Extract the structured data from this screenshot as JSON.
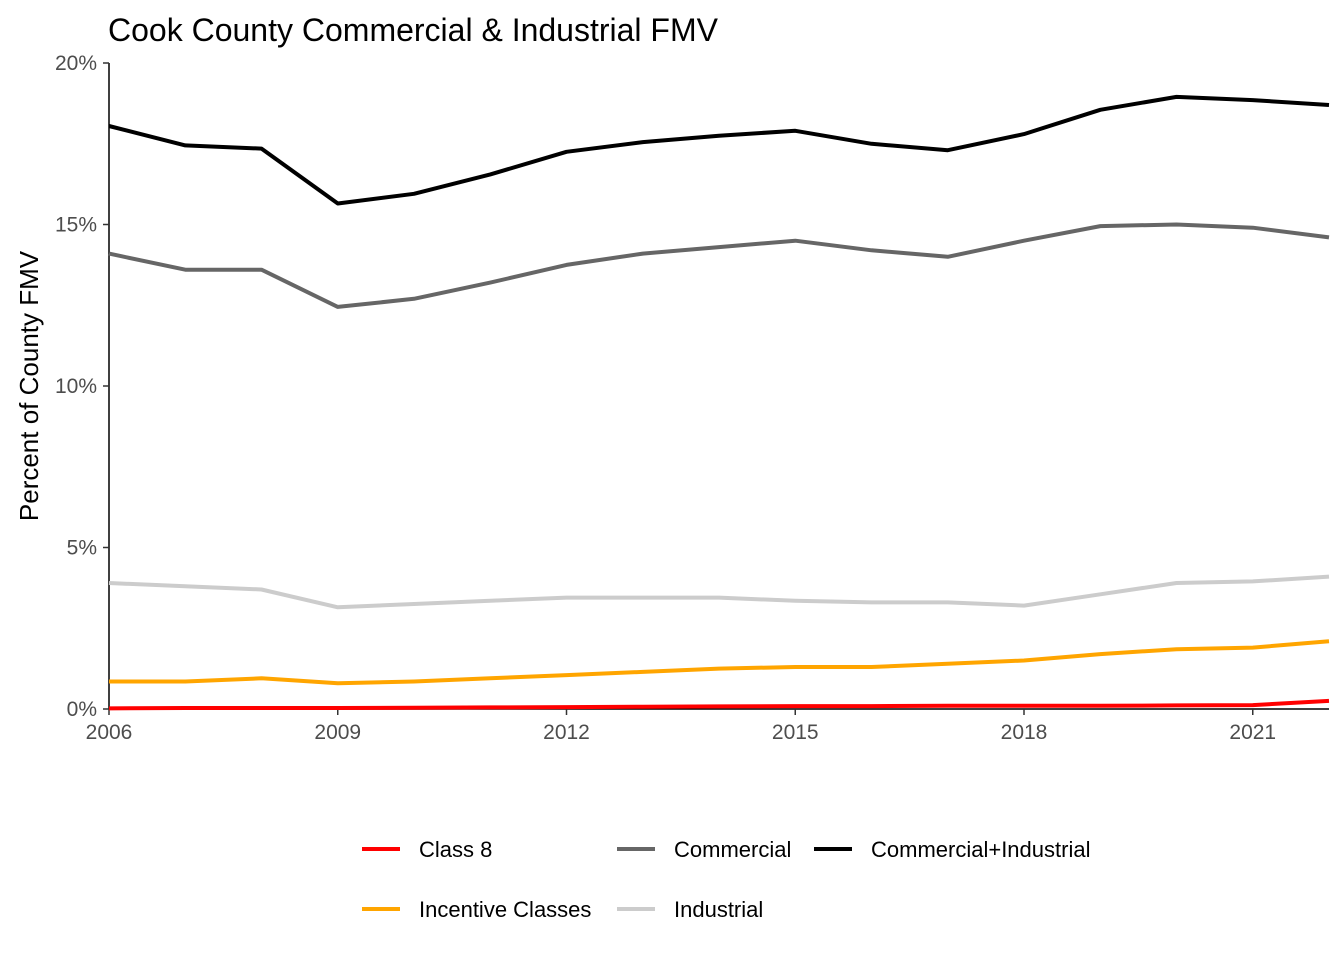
{
  "chart_data": {
    "type": "line",
    "title": "Cook County Commercial & Industrial FMV",
    "xlabel": "",
    "ylabel": "Percent of County FMV",
    "x": [
      2006,
      2007,
      2008,
      2009,
      2010,
      2011,
      2012,
      2013,
      2014,
      2015,
      2016,
      2017,
      2018,
      2019,
      2020,
      2021,
      2022
    ],
    "xlim": [
      2006,
      2022
    ],
    "ylim": [
      0,
      20
    ],
    "x_ticks": [
      "2006",
      "2009",
      "2012",
      "2015",
      "2018",
      "2021"
    ],
    "y_ticks": [
      "0%",
      "5%",
      "10%",
      "15%",
      "20%"
    ],
    "grid": false,
    "legend_position": "bottom",
    "series": [
      {
        "name": "Class 8",
        "color": "#ff0000",
        "values": [
          0.02,
          0.03,
          0.03,
          0.03,
          0.04,
          0.05,
          0.06,
          0.07,
          0.08,
          0.09,
          0.09,
          0.1,
          0.1,
          0.1,
          0.11,
          0.12,
          0.25
        ]
      },
      {
        "name": "Commercial",
        "color": "#666666",
        "values": [
          14.1,
          13.6,
          13.6,
          12.45,
          12.7,
          13.2,
          13.75,
          14.1,
          14.3,
          14.5,
          14.2,
          14.0,
          14.5,
          14.95,
          15.0,
          14.9,
          14.6
        ]
      },
      {
        "name": "Commercial+Industrial",
        "color": "#000000",
        "values": [
          18.05,
          17.45,
          17.35,
          15.65,
          15.95,
          16.55,
          17.25,
          17.55,
          17.75,
          17.9,
          17.5,
          17.3,
          17.8,
          18.55,
          18.95,
          18.85,
          18.7
        ]
      },
      {
        "name": "Incentive Classes",
        "color": "#ffa500",
        "values": [
          0.85,
          0.85,
          0.95,
          0.8,
          0.85,
          0.95,
          1.05,
          1.15,
          1.25,
          1.3,
          1.3,
          1.4,
          1.5,
          1.7,
          1.85,
          1.9,
          2.1
        ]
      },
      {
        "name": "Industrial",
        "color": "#cccccc",
        "values": [
          3.9,
          3.8,
          3.7,
          3.15,
          3.25,
          3.35,
          3.45,
          3.45,
          3.45,
          3.35,
          3.3,
          3.3,
          3.2,
          3.55,
          3.9,
          3.95,
          4.1
        ]
      }
    ]
  }
}
